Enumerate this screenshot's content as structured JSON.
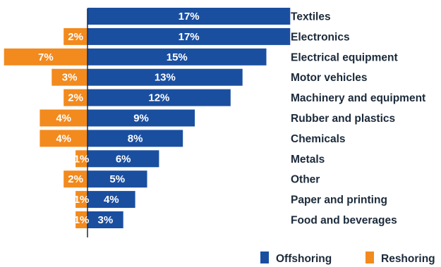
{
  "chart_data": {
    "type": "bar",
    "orientation": "horizontal-diverging",
    "categories": [
      "Textiles",
      "Electronics",
      "Electrical equipment",
      "Motor vehicles",
      "Machinery and equipment",
      "Rubber and plastics",
      "Chemicals",
      "Metals",
      "Other",
      "Paper and printing",
      "Food and beverages"
    ],
    "series": [
      {
        "name": "Offshoring",
        "color": "#1a4fa0",
        "direction": "right",
        "values": [
          17,
          17,
          15,
          13,
          12,
          9,
          8,
          6,
          5,
          4,
          3
        ],
        "labels": [
          "17%",
          "17%",
          "15%",
          "13%",
          "12%",
          "9%",
          "8%",
          "6%",
          "5%",
          "4%",
          "3%"
        ]
      },
      {
        "name": "Reshoring",
        "color": "#f28a1e",
        "direction": "left",
        "values": [
          0,
          2,
          7,
          3,
          2,
          4,
          4,
          1,
          2,
          1,
          1
        ],
        "labels": [
          "",
          "2%",
          "7%",
          "3%",
          "2%",
          "4%",
          "4%",
          "1%",
          "2%",
          "1%",
          "1%"
        ]
      }
    ],
    "legend": {
      "position": "bottom-right"
    },
    "grid": false
  }
}
